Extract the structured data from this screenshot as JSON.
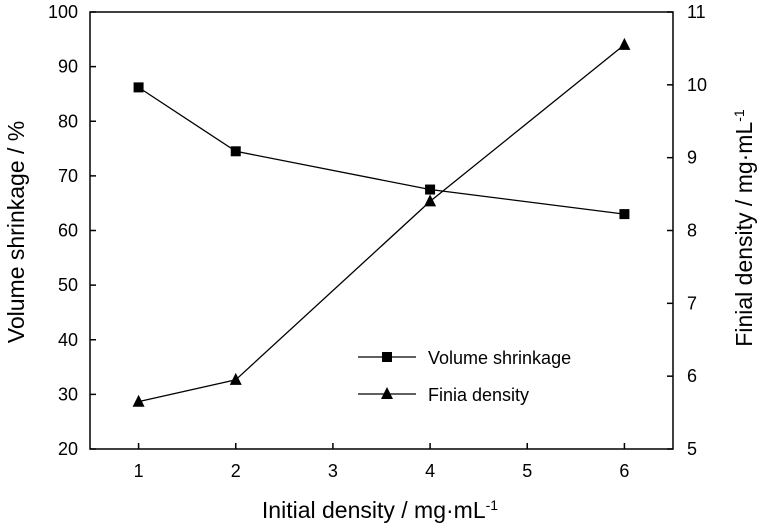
{
  "chart_data": {
    "type": "line",
    "x_ticks": [
      1,
      2,
      3,
      4,
      5,
      6
    ],
    "x_ticks_labels": [
      "1",
      "2",
      "3",
      "4",
      "5",
      "6"
    ],
    "xlim": [
      0.5,
      6.5
    ],
    "xlabel": "Initial density / mg·mL",
    "xlabel_sup": "-1",
    "y_left": {
      "label": "Volume shrinkage / %",
      "lim": [
        20,
        100
      ],
      "ticks": [
        20,
        30,
        40,
        50,
        60,
        70,
        80,
        90,
        100
      ],
      "tick_labels": [
        "20",
        "30",
        "40",
        "50",
        "60",
        "70",
        "80",
        "90",
        "100"
      ]
    },
    "y_right": {
      "label": "Finial density / mg·mL",
      "label_sup": "-1",
      "lim": [
        5,
        11
      ],
      "ticks": [
        5,
        6,
        7,
        8,
        9,
        10,
        11
      ],
      "tick_labels": [
        "5",
        "6",
        "7",
        "8",
        "9",
        "10",
        "11"
      ]
    },
    "grid": false,
    "legend_position": "bottom-right",
    "series": [
      {
        "name": "Volume shrinkage",
        "axis": "left",
        "marker": "square",
        "color": "#000000",
        "x": [
          1,
          2,
          4,
          6
        ],
        "y": [
          86.2,
          74.5,
          67.5,
          63.0
        ]
      },
      {
        "name": "Finia density",
        "axis": "right",
        "marker": "triangle",
        "color": "#000000",
        "x": [
          1,
          2,
          4,
          6
        ],
        "y": [
          5.65,
          5.95,
          8.4,
          10.55
        ]
      }
    ]
  }
}
